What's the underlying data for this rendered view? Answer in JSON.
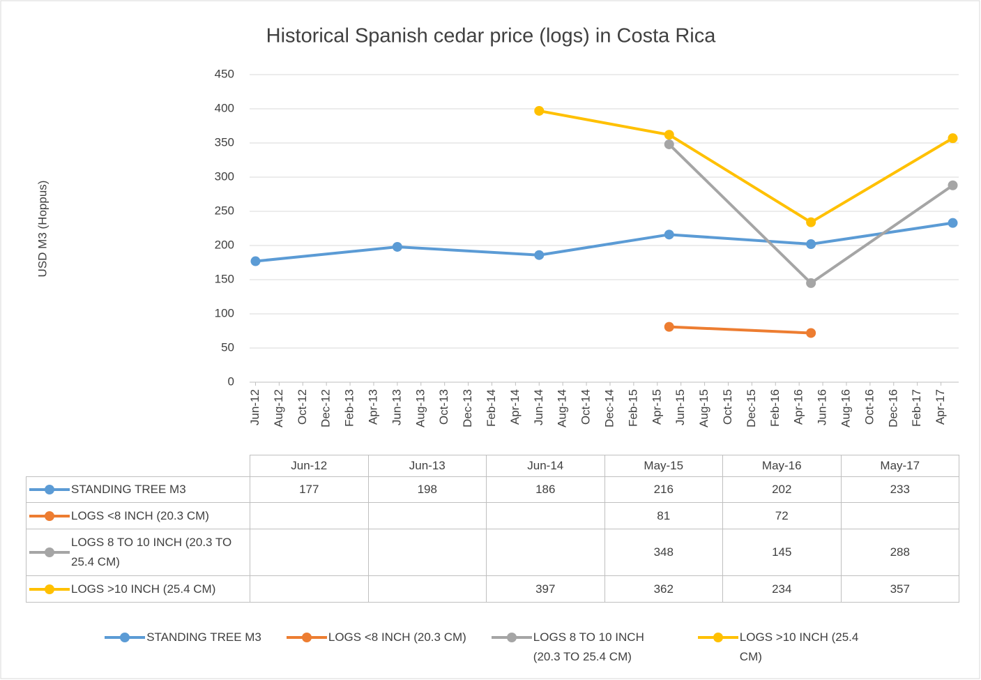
{
  "chart_data": {
    "type": "line",
    "title": "Historical Spanish cedar price (logs) in Costa Rica",
    "y_label": "USD M3 (Hoppus)",
    "x": [
      {
        "value": "2012-06",
        "label": "Jun-12"
      },
      {
        "value": "2013-06",
        "label": "Jun-13"
      },
      {
        "value": "2014-06",
        "label": "Jun-14"
      },
      {
        "value": "2015-05",
        "label": "May-15"
      },
      {
        "value": "2016-05",
        "label": "May-16"
      },
      {
        "value": "2017-05",
        "label": "May-17"
      }
    ],
    "series": [
      {
        "name": "STANDING TREE M3",
        "color": "#5b9bd5",
        "values": [
          177,
          198,
          186,
          216,
          202,
          233
        ]
      },
      {
        "name": "LOGS <8 INCH (20.3 CM)",
        "color": "#ed7d31",
        "values": [
          null,
          null,
          null,
          81,
          72,
          null
        ]
      },
      {
        "name": "LOGS 8 TO 10 INCH (20.3 TO 25.4 CM)",
        "color": "#a5a5a5",
        "values": [
          null,
          null,
          null,
          348,
          145,
          288
        ]
      },
      {
        "name": "LOGS >10 INCH (25.4 CM)",
        "color": "#ffc000",
        "values": [
          null,
          null,
          397,
          362,
          234,
          357
        ]
      }
    ],
    "xlim": [
      "2012-06",
      "2017-05"
    ],
    "xticks": [
      {
        "value": "2012-06",
        "label": "Jun-12"
      },
      {
        "value": "2012-08",
        "label": "Aug-12"
      },
      {
        "value": "2012-10",
        "label": "Oct-12"
      },
      {
        "value": "2012-12",
        "label": "Dec-12"
      },
      {
        "value": "2013-02",
        "label": "Feb-13"
      },
      {
        "value": "2013-04",
        "label": "Apr-13"
      },
      {
        "value": "2013-06",
        "label": "Jun-13"
      },
      {
        "value": "2013-08",
        "label": "Aug-13"
      },
      {
        "value": "2013-10",
        "label": "Oct-13"
      },
      {
        "value": "2013-12",
        "label": "Dec-13"
      },
      {
        "value": "2014-02",
        "label": "Feb-14"
      },
      {
        "value": "2014-04",
        "label": "Apr-14"
      },
      {
        "value": "2014-06",
        "label": "Jun-14"
      },
      {
        "value": "2014-08",
        "label": "Aug-14"
      },
      {
        "value": "2014-10",
        "label": "Oct-14"
      },
      {
        "value": "2014-12",
        "label": "Dec-14"
      },
      {
        "value": "2015-02",
        "label": "Feb-15"
      },
      {
        "value": "2015-04",
        "label": "Apr-15"
      },
      {
        "value": "2015-06",
        "label": "Jun-15"
      },
      {
        "value": "2015-08",
        "label": "Aug-15"
      },
      {
        "value": "2015-10",
        "label": "Oct-15"
      },
      {
        "value": "2015-12",
        "label": "Dec-15"
      },
      {
        "value": "2016-02",
        "label": "Feb-16"
      },
      {
        "value": "2016-04",
        "label": "Apr-16"
      },
      {
        "value": "2016-06",
        "label": "Jun-16"
      },
      {
        "value": "2016-08",
        "label": "Aug-16"
      },
      {
        "value": "2016-10",
        "label": "Oct-16"
      },
      {
        "value": "2016-12",
        "label": "Dec-16"
      },
      {
        "value": "2017-02",
        "label": "Feb-17"
      },
      {
        "value": "2017-04",
        "label": "Apr-17"
      }
    ],
    "ylim": [
      0,
      450
    ],
    "yticks": [
      0,
      50,
      100,
      150,
      200,
      250,
      300,
      350,
      400,
      450
    ],
    "grid": true,
    "legend": "bottom"
  }
}
